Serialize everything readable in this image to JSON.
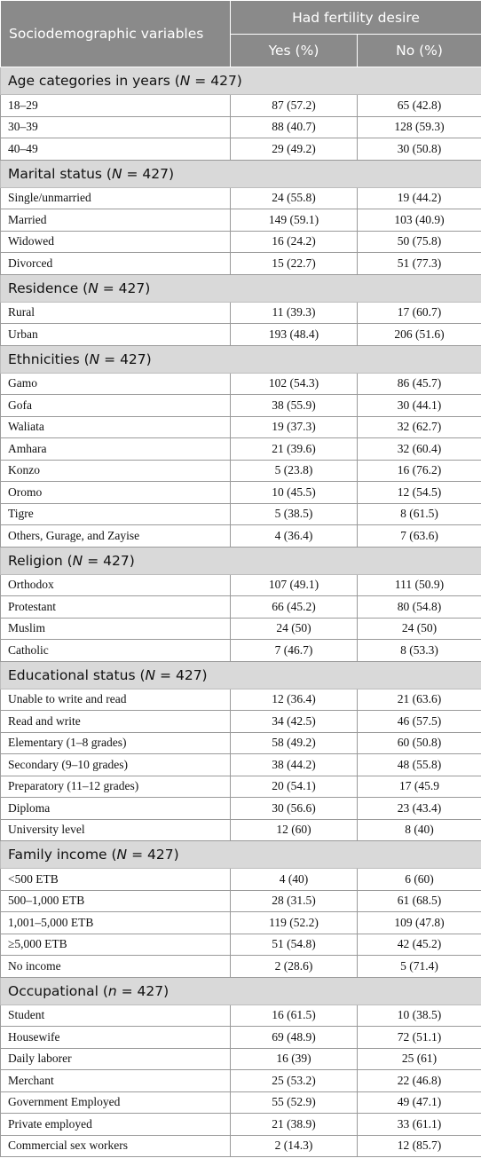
{
  "header": {
    "variables": "Sociodemographic variables",
    "group": "Had fertility desire",
    "yes": "Yes (%)",
    "no": "No (%)"
  },
  "sections": [
    {
      "title_pre": "Age categories in years (",
      "n_symbol": "N",
      "title_post": " = 427)",
      "rows": [
        {
          "label": "18–29",
          "yes": "87 (57.2)",
          "no": "65 (42.8)"
        },
        {
          "label": "30–39",
          "yes": "88 (40.7)",
          "no": "128 (59.3)"
        },
        {
          "label": "40–49",
          "yes": "29 (49.2)",
          "no": "30 (50.8)"
        }
      ]
    },
    {
      "title_pre": "Marital status (",
      "n_symbol": "N",
      "title_post": " = 427)",
      "rows": [
        {
          "label": "Single/unmarried",
          "yes": "24 (55.8)",
          "no": "19 (44.2)"
        },
        {
          "label": "Married",
          "yes": "149 (59.1)",
          "no": "103 (40.9)"
        },
        {
          "label": "Widowed",
          "yes": "16 (24.2)",
          "no": "50 (75.8)"
        },
        {
          "label": "Divorced",
          "yes": "15 (22.7)",
          "no": "51 (77.3)"
        }
      ]
    },
    {
      "title_pre": "Residence (",
      "n_symbol": "N",
      "title_post": " = 427)",
      "rows": [
        {
          "label": "Rural",
          "yes": "11 (39.3)",
          "no": "17 (60.7)"
        },
        {
          "label": "Urban",
          "yes": "193 (48.4)",
          "no": "206 (51.6)"
        }
      ]
    },
    {
      "title_pre": "Ethnicities (",
      "n_symbol": "N",
      "title_post": " = 427)",
      "rows": [
        {
          "label": "Gamo",
          "yes": "102 (54.3)",
          "no": "86 (45.7)"
        },
        {
          "label": "Gofa",
          "yes": "38 (55.9)",
          "no": "30 (44.1)"
        },
        {
          "label": "Waliata",
          "yes": "19 (37.3)",
          "no": "32 (62.7)"
        },
        {
          "label": "Amhara",
          "yes": "21 (39.6)",
          "no": "32 (60.4)"
        },
        {
          "label": "Konzo",
          "yes": "5 (23.8)",
          "no": "16 (76.2)"
        },
        {
          "label": "Oromo",
          "yes": "10 (45.5)",
          "no": "12 (54.5)"
        },
        {
          "label": "Tigre",
          "yes": "5 (38.5)",
          "no": "8 (61.5)"
        },
        {
          "label": "Others, Gurage, and Zayise",
          "yes": "4 (36.4)",
          "no": "7 (63.6)"
        }
      ]
    },
    {
      "title_pre": "Religion (",
      "n_symbol": "N",
      "title_post": " = 427)",
      "rows": [
        {
          "label": "Orthodox",
          "yes": "107 (49.1)",
          "no": "111 (50.9)"
        },
        {
          "label": "Protestant",
          "yes": "66 (45.2)",
          "no": "80 (54.8)"
        },
        {
          "label": "Muslim",
          "yes": "24 (50)",
          "no": "24 (50)"
        },
        {
          "label": "Catholic",
          "yes": "7 (46.7)",
          "no": "8 (53.3)"
        }
      ]
    },
    {
      "title_pre": "Educational status (",
      "n_symbol": "N",
      "title_post": " = 427)",
      "rows": [
        {
          "label": "Unable to write and read",
          "yes": "12 (36.4)",
          "no": "21 (63.6)"
        },
        {
          "label": "Read and write",
          "yes": "34 (42.5)",
          "no": "46 (57.5)"
        },
        {
          "label": "Elementary (1–8 grades)",
          "yes": "58 (49.2)",
          "no": "60 (50.8)"
        },
        {
          "label": "Secondary (9–10 grades)",
          "yes": "38 (44.2)",
          "no": "48 (55.8)"
        },
        {
          "label": "Preparatory (11–12 grades)",
          "yes": "20 (54.1)",
          "no": "17 (45.9"
        },
        {
          "label": "Diploma",
          "yes": "30 (56.6)",
          "no": "23 (43.4)"
        },
        {
          "label": "University level",
          "yes": "12 (60)",
          "no": "8 (40)"
        }
      ]
    },
    {
      "title_pre": "Family income (",
      "n_symbol": "N",
      "title_post": " = 427)",
      "rows": [
        {
          "label": "<500 ETB",
          "yes": "4 (40)",
          "no": "6 (60)"
        },
        {
          "label": "500–1,000 ETB",
          "yes": "28 (31.5)",
          "no": "61 (68.5)"
        },
        {
          "label": "1,001–5,000 ETB",
          "yes": "119 (52.2)",
          "no": "109 (47.8)"
        },
        {
          "label": "≥5,000 ETB",
          "yes": "51 (54.8)",
          "no": "42 (45.2)"
        },
        {
          "label": "No income",
          "yes": "2 (28.6)",
          "no": "5 (71.4)"
        }
      ]
    },
    {
      "title_pre": "Occupational (",
      "n_symbol": "n",
      "title_post": " = 427)",
      "rows": [
        {
          "label": "Student",
          "yes": "16 (61.5)",
          "no": "10 (38.5)"
        },
        {
          "label": "Housewife",
          "yes": "69 (48.9)",
          "no": "72 (51.1)"
        },
        {
          "label": "Daily laborer",
          "yes": "16 (39)",
          "no": "25 (61)"
        },
        {
          "label": "Merchant",
          "yes": "25 (53.2)",
          "no": "22 (46.8)"
        },
        {
          "label": "Government Employed",
          "yes": "55 (52.9)",
          "no": "49 (47.1)"
        },
        {
          "label": "Private employed",
          "yes": "21 (38.9)",
          "no": "33 (61.1)"
        },
        {
          "label": "Commercial sex workers",
          "yes": "2 (14.3)",
          "no": "12 (85.7)"
        }
      ]
    }
  ]
}
